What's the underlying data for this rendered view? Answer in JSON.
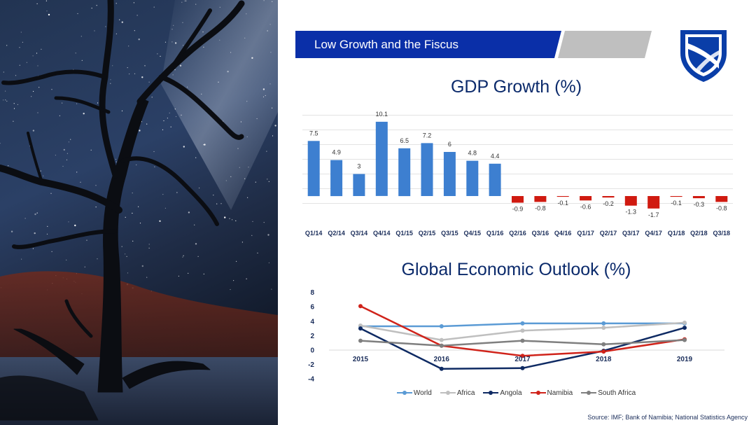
{
  "slide": {
    "banner_title": "Low Growth and the Fiscus",
    "source": "Source: IMF; Bank of Namibia; National Statistics Agency",
    "colors": {
      "banner_blue": "#0a2fa8",
      "banner_grey": "#bfbfbf",
      "title_navy": "#0b2a6b",
      "logo_blue": "#0a3ea8"
    },
    "logo_icon": "standard-bank-shield-icon"
  },
  "chart_data": [
    {
      "type": "bar",
      "title": "GDP Growth (%)",
      "categories": [
        "Q1/14",
        "Q2/14",
        "Q3/14",
        "Q4/14",
        "Q1/15",
        "Q2/15",
        "Q3/15",
        "Q4/15",
        "Q1/16",
        "Q2/16",
        "Q3/16",
        "Q4/16",
        "Q1/17",
        "Q2/17",
        "Q3/17",
        "Q4/17",
        "Q1/18",
        "Q2/18",
        "Q3/18"
      ],
      "values": [
        7.5,
        4.9,
        3,
        10.1,
        6.5,
        7.2,
        6,
        4.8,
        4.4,
        -0.9,
        -0.8,
        -0.1,
        -0.6,
        -0.2,
        -1.3,
        -1.7,
        -0.1,
        -0.3,
        -0.8
      ],
      "data_labels": [
        "7.5",
        "4.9",
        "3",
        "10.1",
        "6.5",
        "7.2",
        "6",
        "4.8",
        "4.4",
        "-0.9",
        "-0.8",
        "-0.1",
        "-0.6",
        "-0.2",
        "-1.3",
        "-1.7",
        "-0.1",
        "-0.3",
        "-0.8"
      ],
      "colors": {
        "positive": "#3d7fd0",
        "negative": "#d01a10"
      },
      "ylim": [
        -2,
        12
      ],
      "grid": true,
      "xlabel": "",
      "ylabel": ""
    },
    {
      "type": "line",
      "title": "Global Economic Outlook (%)",
      "x": [
        "2015",
        "2016",
        "2017",
        "2018",
        "2019"
      ],
      "yticks": [
        "8",
        "6",
        "4",
        "2",
        "0",
        "-2",
        "-4"
      ],
      "ylim": [
        -4,
        8
      ],
      "grid": false,
      "legend_position": "bottom",
      "series": [
        {
          "name": "World",
          "color": "#5b9bd5",
          "values": [
            3.3,
            3.3,
            3.7,
            3.7,
            3.7
          ]
        },
        {
          "name": "Africa",
          "color": "#bfbfbf",
          "values": [
            3.4,
            1.4,
            2.7,
            3.1,
            3.8
          ]
        },
        {
          "name": "Angola",
          "color": "#0e2a63",
          "values": [
            3.0,
            -2.6,
            -2.5,
            -0.1,
            3.1
          ]
        },
        {
          "name": "Namibia",
          "color": "#d0231a",
          "values": [
            6.1,
            0.6,
            -0.8,
            -0.2,
            1.5
          ]
        },
        {
          "name": "South Africa",
          "color": "#7f7f7f",
          "values": [
            1.3,
            0.6,
            1.3,
            0.8,
            1.4
          ]
        }
      ]
    }
  ]
}
